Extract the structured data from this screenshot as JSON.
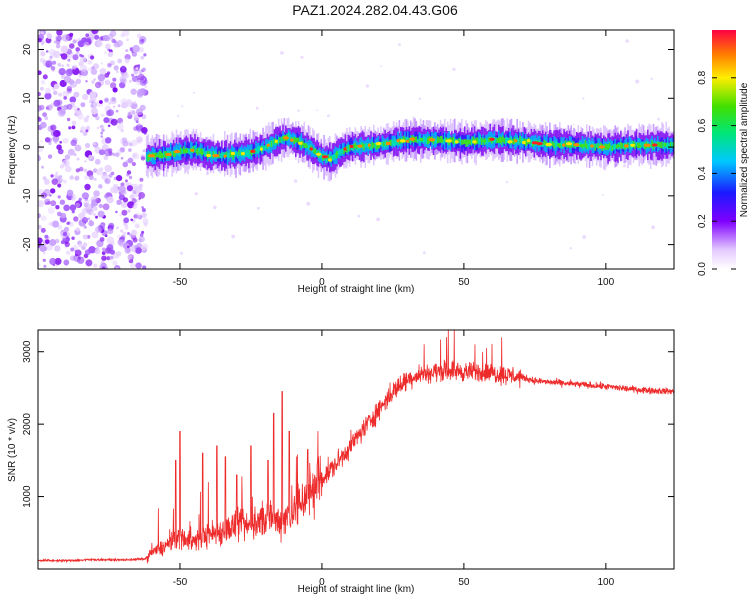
{
  "title": "PAZ1.2024.282.04.43.G06",
  "colors": {
    "series": "#ee2b2b",
    "axis": "#000000"
  },
  "chart_data": [
    {
      "type": "heatmap",
      "xlabel": "Height of straight line (km)",
      "ylabel": "Frequency (Hz)",
      "xlim": [
        -100,
        124
      ],
      "ylim": [
        -25,
        24
      ],
      "x_ticks": [
        -50,
        0,
        50,
        100
      ],
      "y_ticks": [
        -20,
        -10,
        0,
        10,
        20
      ],
      "x_tick_labels": [
        "-50",
        "0",
        "50",
        "100"
      ],
      "y_tick_labels": [
        "-20",
        "-10",
        "0",
        "10",
        "20"
      ],
      "colorbar": {
        "label": "Normalized spectral amplitude",
        "range": [
          0,
          1
        ],
        "ticks": [
          0.0,
          0.2,
          0.4,
          0.6,
          0.8
        ],
        "tick_labels": [
          "0.0",
          "0.2",
          "0.4",
          "0.6",
          "0.8"
        ]
      },
      "noise_region_x": [
        -100,
        -62
      ],
      "ridge": {
        "x": [
          -62,
          -55,
          -50,
          -45,
          -40,
          -35,
          -30,
          -25,
          -20,
          -15,
          -12,
          -8,
          -5,
          0,
          3,
          6,
          10,
          20,
          30,
          40,
          50,
          60,
          70,
          80,
          90,
          100,
          110,
          124
        ],
        "frequency": [
          -2,
          -1.5,
          -1,
          -0.5,
          -1.5,
          -1.8,
          -1.5,
          -1,
          0,
          1.5,
          2,
          1,
          0,
          -2,
          -2.5,
          -1,
          0,
          0.5,
          1.5,
          1.5,
          1.0,
          1.5,
          1.2,
          0.6,
          0.4,
          0,
          0.4,
          0.4
        ]
      }
    },
    {
      "type": "line",
      "xlabel": "Height of straight line (km)",
      "ylabel": "SNR (10 * v/v)",
      "xlim": [
        -100,
        124
      ],
      "ylim": [
        0,
        3300
      ],
      "x_ticks": [
        -50,
        0,
        50,
        100
      ],
      "y_ticks": [
        1000,
        2000,
        3000
      ],
      "x_tick_labels": [
        "-50",
        "0",
        "50",
        "100"
      ],
      "y_tick_labels": [
        "1000",
        "2000",
        "3000"
      ],
      "series": [
        {
          "x": [
            -100,
            -90,
            -80,
            -70,
            -62,
            -60,
            -55,
            -50,
            -45,
            -40,
            -35,
            -30,
            -25,
            -20,
            -15,
            -10,
            -5,
            0,
            5,
            10,
            15,
            20,
            25,
            30,
            35,
            40,
            45,
            50,
            55,
            60,
            65,
            70,
            75,
            80,
            90,
            100,
            110,
            124
          ],
          "y": [
            120,
            115,
            130,
            125,
            140,
            220,
            320,
            450,
            380,
            480,
            520,
            600,
            580,
            700,
            650,
            800,
            1050,
            1250,
            1450,
            1700,
            1950,
            2200,
            2450,
            2620,
            2700,
            2720,
            2750,
            2720,
            2720,
            2700,
            2680,
            2650,
            2600,
            2580,
            2550,
            2520,
            2480,
            2450
          ]
        }
      ]
    }
  ]
}
